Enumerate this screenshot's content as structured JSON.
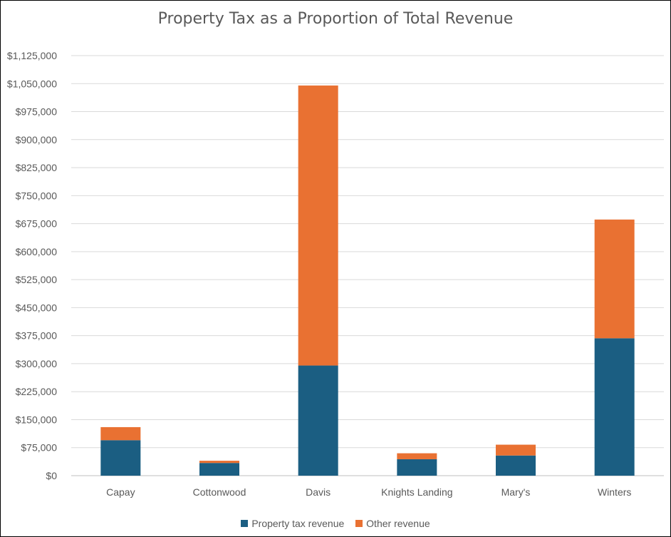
{
  "chart_data": {
    "type": "bar",
    "stacked": true,
    "title": "Property Tax as a Proportion of Total Revenue",
    "xlabel": "",
    "ylabel": "",
    "categories": [
      "Capay",
      "Cottonwood",
      "Davis",
      "Knights Landing",
      "Mary's",
      "Winters"
    ],
    "series": [
      {
        "name": "Property tax revenue",
        "color": "#1b5e82",
        "values": [
          95000,
          34000,
          295000,
          44000,
          54000,
          368000
        ]
      },
      {
        "name": "Other revenue",
        "color": "#e97132",
        "values": [
          35000,
          6000,
          750000,
          16000,
          29000,
          318000
        ]
      }
    ],
    "ylim": [
      0,
      1125000
    ],
    "y_ticks": [
      "$0",
      "$75,000",
      "$150,000",
      "$225,000",
      "$300,000",
      "$375,000",
      "$450,000",
      "$525,000",
      "$600,000",
      "$675,000",
      "$750,000",
      "$825,000",
      "$900,000",
      "$975,000",
      "$1,050,000",
      "$1,125,000"
    ],
    "grid": true,
    "legend_position": "bottom"
  }
}
